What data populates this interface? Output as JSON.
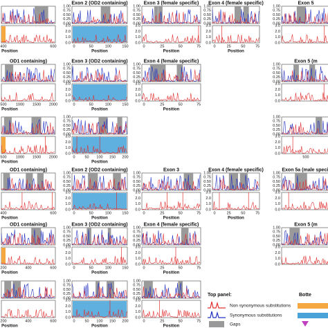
{
  "ytick_top": [
    "0.00",
    "0.25",
    "0.50",
    "0.75",
    "1.00"
  ],
  "ytick_bottom": [
    "0.0",
    "1.0",
    "2.0",
    "3.0"
  ],
  "axis_label": "Position",
  "panels": [
    {
      "xticks": [
        "400",
        "600"
      ]
    },
    {
      "title": "Exon 2 (OD2 containing)",
      "xticks": [
        "0",
        "50",
        "100",
        "150"
      ]
    },
    {
      "title": "Exon 3 (female specific)",
      "xticks": [
        "0",
        "25",
        "50",
        "75"
      ]
    },
    {
      "title": "Exon 4 (female specific)",
      "xticks": [
        "0",
        "25",
        "50",
        "75"
      ]
    },
    {
      "title": "Exon 5",
      "xticks": []
    },
    {
      "title": "OD1 containing)",
      "xticks": [
        "500",
        "1000",
        "1500",
        "2000"
      ]
    },
    {
      "title": "Exon 3 (OD2 containing)",
      "xticks": [
        "0",
        "50",
        "100",
        "150"
      ]
    },
    {
      "title": "Exon 4 (female specific)",
      "xticks": [
        "0",
        "25",
        "50",
        "75"
      ]
    },
    {
      "title": "Exon 5 (m",
      "xticks": []
    },
    {
      "xticks": [
        "500",
        "1000",
        "1500",
        "2000"
      ]
    },
    {
      "xticks": [
        "0",
        "50",
        "100",
        "150",
        "200"
      ]
    },
    {
      "xticks": [
        "500"
      ]
    },
    {
      "title": "OD1 containing)",
      "xticks": [
        "400",
        "600"
      ]
    },
    {
      "title": "Exon 2 (OD2 containing)",
      "xticks": [
        "0",
        "50",
        "100",
        "150"
      ]
    },
    {
      "title": "Exon 3",
      "xticks": [
        "0",
        "25",
        "50",
        "75"
      ]
    },
    {
      "title": "Exon 4 (female specific)",
      "xticks": [
        "0",
        "25",
        "50",
        "75"
      ]
    },
    {
      "title": "Exon 5a (male specif",
      "xticks": []
    },
    {
      "title": "OD1 containing)",
      "xticks": [
        "200",
        "400",
        "600"
      ]
    },
    {
      "title": "Exon 3 (OD2 containing)",
      "xticks": [
        "0",
        "50",
        "100",
        "150"
      ]
    },
    {
      "title": "Exon 4 (female specific)",
      "xticks": [
        "0",
        "25",
        "50",
        "75"
      ]
    },
    {
      "title": "Exon 5 (m",
      "xticks": []
    },
    {
      "xticks": [
        "200",
        "400",
        "600"
      ]
    },
    {
      "xticks": [
        "0",
        "50",
        "100",
        "150",
        "200"
      ]
    },
    {
      "xticks": [
        "0",
        "25",
        "50",
        "75"
      ]
    }
  ],
  "legend": {
    "top_title": "Top panel:",
    "items": [
      "Non synonymous substitutions",
      "Synonymous substitutions",
      "Gaps"
    ],
    "bottom_title": "Botte"
  }
}
